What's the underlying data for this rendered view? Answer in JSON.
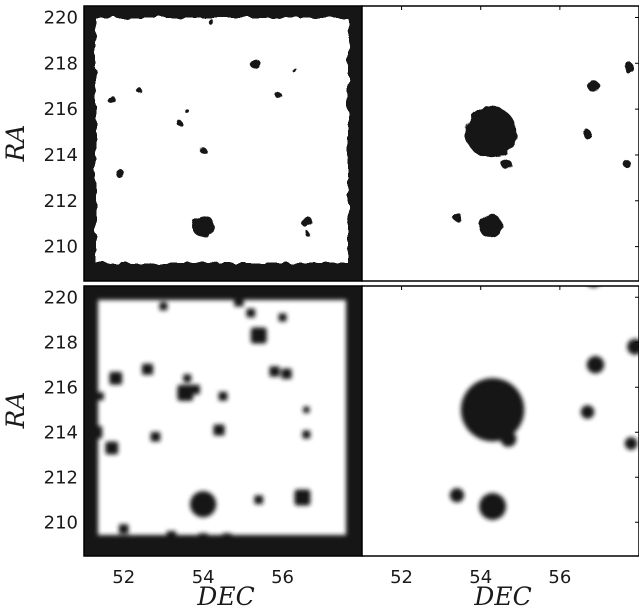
{
  "chart_data": {
    "type": "heatmap",
    "description_levels": [
      "mask",
      "source"
    ],
    "xlabel": "DEC",
    "ylabel": "RA",
    "xlim": [
      51,
      58
    ],
    "ylim": [
      208.5,
      220.5
    ],
    "x_ticks": [
      52,
      54,
      56
    ],
    "y_ticks": [
      210,
      212,
      214,
      216,
      218,
      220
    ],
    "colors": {
      "mask": "#141414",
      "background": "#ffffff",
      "frame": "#000000"
    },
    "panels": [
      {
        "row": 0,
        "col": 0,
        "style": "sharp",
        "border_mask": true,
        "sources": [
          {
            "dec": 54.0,
            "ra": 210.9,
            "r": 0.28
          },
          {
            "dec": 54.3,
            "ra": 209.2,
            "r": 0.1
          },
          {
            "dec": 56.6,
            "ra": 211.1,
            "r": 0.14
          },
          {
            "dec": 51.9,
            "ra": 213.2,
            "r": 0.11
          },
          {
            "dec": 51.7,
            "ra": 216.4,
            "r": 0.1
          },
          {
            "dec": 52.4,
            "ra": 216.8,
            "r": 0.07
          },
          {
            "dec": 53.4,
            "ra": 215.4,
            "r": 0.07
          },
          {
            "dec": 54.0,
            "ra": 214.2,
            "r": 0.08
          },
          {
            "dec": 55.3,
            "ra": 218.0,
            "r": 0.13
          },
          {
            "dec": 55.9,
            "ra": 216.6,
            "r": 0.08
          },
          {
            "dec": 56.3,
            "ra": 217.7,
            "r": 0.06
          },
          {
            "dec": 54.2,
            "ra": 219.8,
            "r": 0.07
          },
          {
            "dec": 56.6,
            "ra": 210.6,
            "r": 0.06
          },
          {
            "dec": 53.6,
            "ra": 215.9,
            "r": 0.05
          }
        ]
      },
      {
        "row": 0,
        "col": 1,
        "style": "sharp",
        "border_mask": false,
        "sources": [
          {
            "dec": 54.25,
            "ra": 215.0,
            "r": 0.65
          },
          {
            "dec": 54.65,
            "ra": 213.6,
            "r": 0.13
          },
          {
            "dec": 54.25,
            "ra": 210.9,
            "r": 0.3
          },
          {
            "dec": 53.4,
            "ra": 211.3,
            "r": 0.11
          },
          {
            "dec": 56.85,
            "ra": 217.0,
            "r": 0.15
          },
          {
            "dec": 56.7,
            "ra": 214.9,
            "r": 0.11
          },
          {
            "dec": 57.75,
            "ra": 217.8,
            "r": 0.13
          },
          {
            "dec": 57.7,
            "ra": 213.6,
            "r": 0.1
          },
          {
            "dec": 56.85,
            "ra": 220.7,
            "r": 0.15
          }
        ]
      },
      {
        "row": 1,
        "col": 0,
        "style": "blurred",
        "border_mask": true,
        "sources": [
          {
            "dec": 54.0,
            "ra": 210.8,
            "r": 0.33
          },
          {
            "dec": 53.2,
            "ra": 209.4,
            "r": 0.12
          },
          {
            "dec": 52.0,
            "ra": 209.7,
            "r": 0.12
          },
          {
            "dec": 54.0,
            "ra": 209.3,
            "r": 0.12
          },
          {
            "dec": 54.6,
            "ra": 209.3,
            "r": 0.12
          },
          {
            "dec": 56.5,
            "ra": 211.1,
            "r": 0.2
          },
          {
            "dec": 55.4,
            "ra": 211.0,
            "r": 0.11
          },
          {
            "dec": 51.7,
            "ra": 213.3,
            "r": 0.16
          },
          {
            "dec": 52.8,
            "ra": 213.8,
            "r": 0.12
          },
          {
            "dec": 51.3,
            "ra": 214.0,
            "r": 0.16
          },
          {
            "dec": 51.4,
            "ra": 215.6,
            "r": 0.1
          },
          {
            "dec": 51.8,
            "ra": 216.4,
            "r": 0.16
          },
          {
            "dec": 52.6,
            "ra": 216.8,
            "r": 0.14
          },
          {
            "dec": 53.6,
            "ra": 216.4,
            "r": 0.1
          },
          {
            "dec": 53.55,
            "ra": 215.75,
            "r": 0.2
          },
          {
            "dec": 53.8,
            "ra": 215.9,
            "r": 0.12
          },
          {
            "dec": 54.5,
            "ra": 215.6,
            "r": 0.11
          },
          {
            "dec": 55.4,
            "ra": 218.3,
            "r": 0.2
          },
          {
            "dec": 55.2,
            "ra": 219.3,
            "r": 0.11
          },
          {
            "dec": 55.8,
            "ra": 216.7,
            "r": 0.13
          },
          {
            "dec": 56.1,
            "ra": 216.6,
            "r": 0.13
          },
          {
            "dec": 56.0,
            "ra": 219.1,
            "r": 0.1
          },
          {
            "dec": 54.4,
            "ra": 214.1,
            "r": 0.14
          },
          {
            "dec": 56.6,
            "ra": 213.9,
            "r": 0.1
          },
          {
            "dec": 56.6,
            "ra": 215.0,
            "r": 0.08
          },
          {
            "dec": 54.9,
            "ra": 219.8,
            "r": 0.12
          },
          {
            "dec": 53.0,
            "ra": 219.6,
            "r": 0.1
          }
        ]
      },
      {
        "row": 1,
        "col": 1,
        "style": "blurred",
        "border_mask": false,
        "sources": [
          {
            "dec": 54.3,
            "ra": 215.0,
            "r": 0.8
          },
          {
            "dec": 54.7,
            "ra": 213.7,
            "r": 0.2
          },
          {
            "dec": 54.3,
            "ra": 210.7,
            "r": 0.34
          },
          {
            "dec": 53.4,
            "ra": 211.2,
            "r": 0.18
          },
          {
            "dec": 56.9,
            "ra": 217.0,
            "r": 0.22
          },
          {
            "dec": 56.7,
            "ra": 214.9,
            "r": 0.17
          },
          {
            "dec": 57.9,
            "ra": 217.8,
            "r": 0.2
          },
          {
            "dec": 57.8,
            "ra": 213.5,
            "r": 0.16
          },
          {
            "dec": 56.85,
            "ra": 220.8,
            "r": 0.2
          }
        ]
      }
    ]
  }
}
